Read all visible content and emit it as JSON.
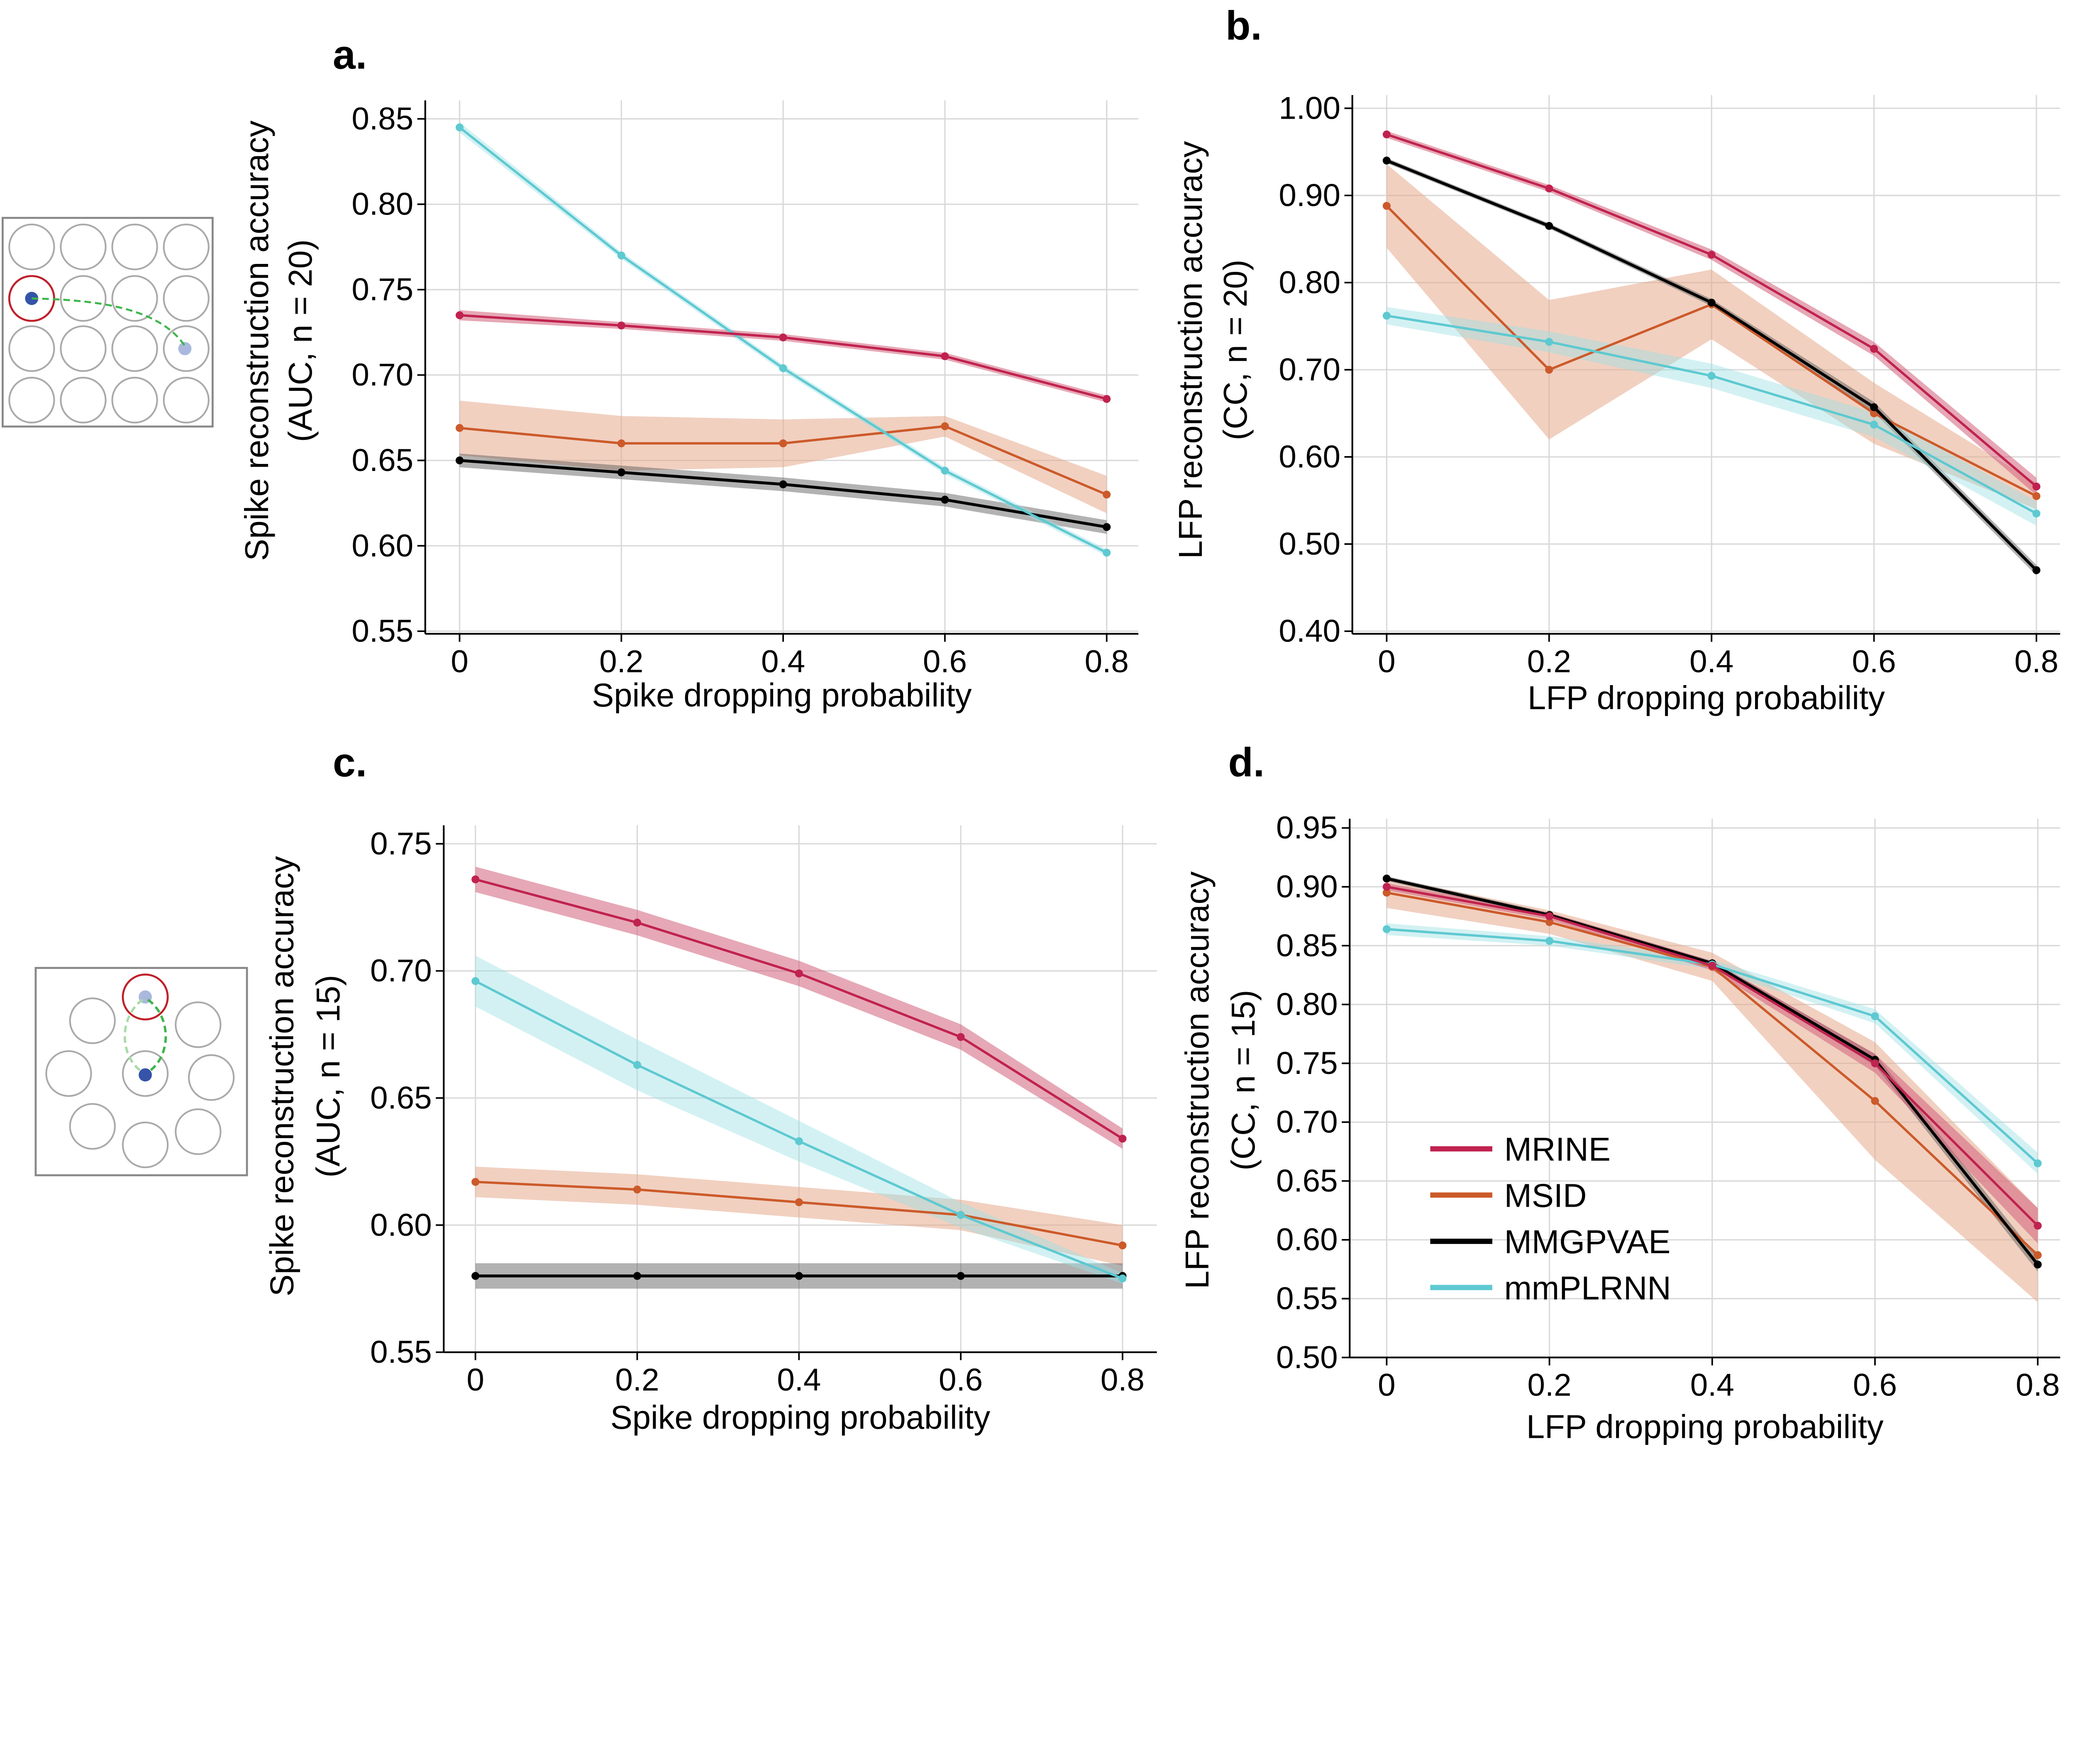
{
  "chart_data": [
    {
      "panel": "a.",
      "type": "line",
      "xlabel": "Spike dropping probability",
      "ylabel": [
        "Spike reconstruction accuracy",
        "(AUC, n = 20)"
      ],
      "x": [
        0,
        0.2,
        0.4,
        0.6,
        0.8
      ],
      "xtick_labels": [
        "0",
        "0.2",
        "0.4",
        "0.6",
        "0.8"
      ],
      "ylim": [
        0.55,
        0.85
      ],
      "yticks": [
        0.55,
        0.6,
        0.65,
        0.7,
        0.75,
        0.8,
        0.85
      ],
      "grid": true,
      "series": [
        {
          "name": "MRINE",
          "values": [
            0.735,
            0.729,
            0.722,
            0.711,
            0.686
          ],
          "err": [
            0.003,
            0.002,
            0.002,
            0.002,
            0.002
          ]
        },
        {
          "name": "MSID",
          "values": [
            0.669,
            0.66,
            0.66,
            0.67,
            0.63
          ],
          "err": [
            0.016,
            0.016,
            0.014,
            0.006,
            0.011
          ]
        },
        {
          "name": "MMGPVAE",
          "values": [
            0.65,
            0.643,
            0.636,
            0.627,
            0.611
          ],
          "err": [
            0.004,
            0.004,
            0.004,
            0.004,
            0.004
          ]
        },
        {
          "name": "mmPLRNN",
          "values": [
            0.845,
            0.77,
            0.704,
            0.644,
            0.596
          ],
          "err": [
            0.003,
            0.002,
            0.002,
            0.002,
            0.002
          ]
        }
      ]
    },
    {
      "panel": "b.",
      "type": "line",
      "xlabel": "LFP dropping probability",
      "ylabel": [
        "LFP reconstruction accuracy",
        "(CC, n = 20)"
      ],
      "x": [
        0,
        0.2,
        0.4,
        0.6,
        0.8
      ],
      "xtick_labels": [
        "0",
        "0.2",
        "0.4",
        "0.6",
        "0.8"
      ],
      "ylim": [
        0.4,
        1.0
      ],
      "yticks": [
        0.4,
        0.5,
        0.6,
        0.7,
        0.8,
        0.9,
        1.0
      ],
      "grid": true,
      "series": [
        {
          "name": "MRINE",
          "values": [
            0.97,
            0.908,
            0.832,
            0.724,
            0.566
          ],
          "err": [
            0.004,
            0.004,
            0.006,
            0.008,
            0.01
          ]
        },
        {
          "name": "MSID",
          "values": [
            0.888,
            0.7,
            0.775,
            0.65,
            0.555
          ],
          "err": [
            0.048,
            0.08,
            0.04,
            0.035,
            0.015
          ]
        },
        {
          "name": "MMGPVAE",
          "values": [
            0.94,
            0.865,
            0.777,
            0.657,
            0.47
          ],
          "err": [
            0.003,
            0.003,
            0.004,
            0.006,
            0.006
          ]
        },
        {
          "name": "mmPLRNN",
          "values": [
            0.762,
            0.732,
            0.693,
            0.637,
            0.535
          ],
          "err": [
            0.01,
            0.012,
            0.014,
            0.014,
            0.014
          ]
        }
      ]
    },
    {
      "panel": "c.",
      "type": "line",
      "xlabel": "Spike dropping probability",
      "ylabel": [
        "Spike reconstruction accuracy",
        "(AUC, n = 15)"
      ],
      "x": [
        0,
        0.2,
        0.4,
        0.6,
        0.8
      ],
      "xtick_labels": [
        "0",
        "0.2",
        "0.4",
        "0.6",
        "0.8"
      ],
      "ylim": [
        0.55,
        0.75
      ],
      "yticks": [
        0.55,
        0.6,
        0.65,
        0.7,
        0.75
      ],
      "grid": true,
      "series": [
        {
          "name": "MRINE",
          "values": [
            0.736,
            0.719,
            0.699,
            0.674,
            0.634
          ],
          "err": [
            0.005,
            0.005,
            0.005,
            0.005,
            0.004
          ]
        },
        {
          "name": "MSID",
          "values": [
            0.617,
            0.614,
            0.609,
            0.604,
            0.592
          ],
          "err": [
            0.006,
            0.006,
            0.006,
            0.006,
            0.008
          ]
        },
        {
          "name": "MMGPVAE",
          "values": [
            0.58,
            0.58,
            0.58,
            0.58,
            0.58
          ],
          "err": [
            0.005,
            0.005,
            0.005,
            0.005,
            0.005
          ]
        },
        {
          "name": "mmPLRNN",
          "values": [
            0.696,
            0.663,
            0.633,
            0.604,
            0.579
          ],
          "err": [
            0.01,
            0.01,
            0.008,
            0.005,
            0.002
          ]
        }
      ]
    },
    {
      "panel": "d.",
      "type": "line",
      "xlabel": "LFP dropping probability",
      "ylabel": [
        "LFP reconstruction accuracy",
        "(CC, n = 15)"
      ],
      "x": [
        0,
        0.2,
        0.4,
        0.6,
        0.8
      ],
      "xtick_labels": [
        "0",
        "0.2",
        "0.4",
        "0.6",
        "0.8"
      ],
      "ylim": [
        0.5,
        0.95
      ],
      "yticks": [
        0.5,
        0.55,
        0.6,
        0.65,
        0.7,
        0.75,
        0.8,
        0.85,
        0.9,
        0.95
      ],
      "grid": true,
      "legend": "bottom-left",
      "series": [
        {
          "name": "MRINE",
          "values": [
            0.9,
            0.875,
            0.833,
            0.75,
            0.612
          ],
          "err": [
            0.003,
            0.003,
            0.004,
            0.008,
            0.015
          ]
        },
        {
          "name": "MSID",
          "values": [
            0.895,
            0.87,
            0.832,
            0.718,
            0.587
          ],
          "err": [
            0.013,
            0.01,
            0.012,
            0.05,
            0.04
          ]
        },
        {
          "name": "MMGPVAE",
          "values": [
            0.907,
            0.876,
            0.835,
            0.753,
            0.579
          ],
          "err": [
            0.002,
            0.002,
            0.002,
            0.005,
            0.006
          ]
        },
        {
          "name": "mmPLRNN",
          "values": [
            0.864,
            0.854,
            0.834,
            0.79,
            0.665
          ],
          "err": [
            0.005,
            0.004,
            0.004,
            0.006,
            0.009
          ]
        }
      ]
    }
  ],
  "legend": [
    "MRINE",
    "MSID",
    "MMGPVAE",
    "mmPLRNN"
  ],
  "colors": {
    "MRINE": "#c0224f",
    "MSID": "#cc5a2a",
    "MMGPVAE": "#000000",
    "mmPLRNN": "#5ec9d1"
  },
  "band_colors": {
    "MRINE": "#d1607a",
    "MSID": "#e6a98c",
    "MMGPVAE": "#555555",
    "mmPLRNN": "#9ee0e5"
  }
}
